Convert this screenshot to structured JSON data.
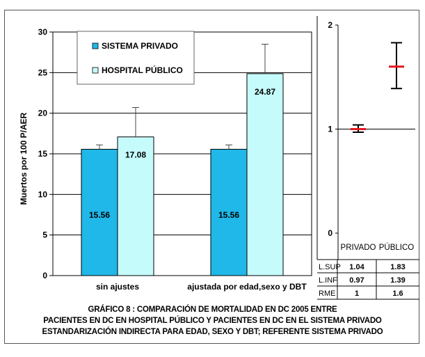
{
  "chart_data": [
    {
      "type": "bar",
      "ylabel": "Muertos por 100 P/AER",
      "ylim": [
        0,
        30
      ],
      "yticks": [
        "0",
        "5",
        "10",
        "15",
        "20",
        "25",
        "30"
      ],
      "categories": [
        "sin ajustes",
        "ajustada por edad,sexo y DBT"
      ],
      "legend_position": "top-left",
      "series": [
        {
          "name": "SISTEMA PRIVADO",
          "color": "#1fb8e8",
          "values": [
            15.56,
            15.56
          ],
          "labels": [
            "15.56",
            "15.56"
          ],
          "error_upper": [
            16.1,
            16.1
          ]
        },
        {
          "name": "HOSPITAL PÚBLICO",
          "color": "#c6fbfb",
          "values": [
            17.08,
            24.87
          ],
          "labels": [
            "17.08",
            "24.87"
          ],
          "error_upper": [
            20.7,
            28.5
          ]
        }
      ]
    },
    {
      "type": "errorbar",
      "ylim": [
        0,
        2
      ],
      "yticks": [
        "0",
        "1",
        "2"
      ],
      "categories": [
        "PRIVADO",
        "PÚBLICO"
      ],
      "point_color": "#e8161b",
      "points": [
        {
          "category": "PRIVADO",
          "rme": 1,
          "lower": 0.97,
          "upper": 1.04
        },
        {
          "category": "PÚBLICO",
          "rme": 1.6,
          "lower": 1.39,
          "upper": 1.83
        }
      ],
      "table": {
        "rows": [
          {
            "label": "L.SUP",
            "values": [
              "1.04",
              "1.83"
            ]
          },
          {
            "label": "L.INF",
            "values": [
              "0.97",
              "1.39"
            ]
          },
          {
            "label": "RME",
            "values": [
              "1",
              "1.6"
            ]
          }
        ]
      }
    }
  ],
  "caption": {
    "line1": "GRÁFICO 8 :  COMPARACIÓN DE  MORTALIDAD EN DC  2005 ENTRE",
    "line2": "PACIENTES EN DC EN HOSPITAL PÚBLICO Y PACIENTES EN DC EN EL SISTEMA PRIVADO",
    "line3": "ESTANDARIZACIÓN INDIRECTA PARA EDAD, SEXO Y DBT; REFERENTE SISTEMA PRIVADO"
  }
}
